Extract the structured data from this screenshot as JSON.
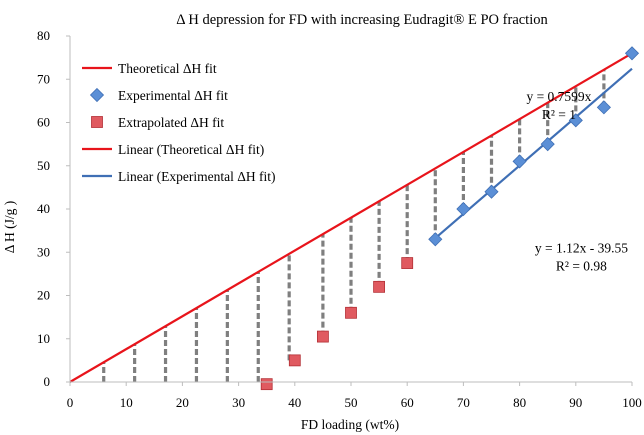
{
  "chart_data": {
    "type": "scatter",
    "title": "Δ H depression for FD with increasing Eudragit® E PO fraction",
    "xlabel": "FD loading (wt%)",
    "ylabel": "Δ H (J/g )",
    "xlim": [
      0,
      100
    ],
    "ylim": [
      0,
      80
    ],
    "x_ticks": [
      "0",
      "10",
      "20",
      "30",
      "40",
      "50",
      "60",
      "70",
      "80",
      "90",
      "100"
    ],
    "y_ticks": [
      "0",
      "10",
      "20",
      "30",
      "40",
      "50",
      "60",
      "70",
      "80"
    ],
    "grid": false,
    "legend_position": "top-left",
    "series": [
      {
        "name": "Theoretical ΔH fit",
        "kind": "line",
        "color": "#e8141b",
        "x": [
          0,
          100
        ],
        "y": [
          0,
          75.99
        ]
      },
      {
        "name": "Experimental ΔH fit",
        "kind": "marker",
        "marker": "diamond",
        "color": "#5b8fd6",
        "x": [
          65,
          70,
          75,
          80,
          85,
          90,
          95,
          100
        ],
        "y": [
          33,
          40,
          44,
          51,
          55,
          60.5,
          63.5,
          76
        ]
      },
      {
        "name": "Extrapolated ΔH fit",
        "kind": "marker",
        "marker": "square",
        "color": "#e05a60",
        "x": [
          35,
          40,
          45,
          50,
          55,
          60
        ],
        "y": [
          -0.5,
          5,
          10.5,
          16,
          22,
          27.5
        ]
      },
      {
        "name": "Linear (Theoretical ΔH fit)",
        "kind": "line",
        "color": "#e8141b",
        "x": [
          0,
          100
        ],
        "y": [
          0,
          75.99
        ]
      },
      {
        "name": "Linear (Experimental ΔH fit)",
        "kind": "line",
        "color": "#3f6fb5",
        "x": [
          65,
          100
        ],
        "y": [
          33.25,
          72.45
        ]
      }
    ],
    "depression_bars": {
      "x": [
        6,
        11.5,
        17,
        22.5,
        28,
        33.5,
        39,
        45,
        50,
        55,
        60,
        65,
        70,
        75,
        80,
        85,
        90,
        95
      ],
      "y_bottom": [
        0,
        0,
        0,
        0,
        0,
        0,
        5,
        10.5,
        16,
        22,
        27.5,
        33,
        40,
        44,
        51,
        55,
        60.5,
        63.5
      ]
    },
    "annotations": [
      {
        "line1": "y = 0.7599x",
        "line2": "R² = 1",
        "x": 87,
        "y": 65
      },
      {
        "line1": "y = 1.12x - 39.55",
        "line2": "R² = 0.98",
        "x": 91,
        "y": 30
      }
    ]
  }
}
